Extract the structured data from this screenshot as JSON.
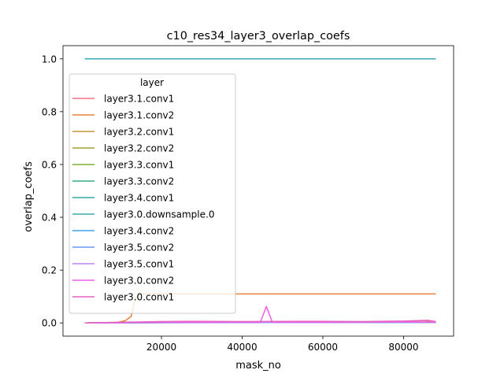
{
  "chart_data": {
    "type": "line",
    "title": "c10_res34_layer3_overlap_coefs",
    "xlabel": "mask_no",
    "ylabel": "overlap_coefs",
    "xlim": [
      -4400,
      92400
    ],
    "ylim": [
      -0.05,
      1.05
    ],
    "xticks": [
      20000,
      40000,
      60000,
      80000
    ],
    "xtick_labels": [
      "20000",
      "40000",
      "60000",
      "80000"
    ],
    "yticks": [
      0.0,
      0.2,
      0.4,
      0.6,
      0.8,
      1.0
    ],
    "ytick_labels": [
      "0.0",
      "0.2",
      "0.4",
      "0.6",
      "0.8",
      "1.0"
    ],
    "grid": false,
    "legend": {
      "title": "layer",
      "position": "upper-left"
    },
    "series": [
      {
        "name": "layer3.1.conv1",
        "color": "#f77189",
        "x": [
          1000,
          20000,
          40000,
          60000,
          80000,
          88000
        ],
        "y": [
          0.0,
          0.002,
          0.002,
          0.002,
          0.003,
          0.003
        ]
      },
      {
        "name": "layer3.1.conv2",
        "color": "#e9823a",
        "x": [
          1000,
          5000,
          9000,
          11000,
          12500,
          13500,
          14500,
          20000,
          40000,
          60000,
          80000,
          88000
        ],
        "y": [
          0.0,
          0.001,
          0.002,
          0.008,
          0.025,
          0.09,
          0.11,
          0.11,
          0.11,
          0.11,
          0.11,
          0.11
        ]
      },
      {
        "name": "layer3.2.conv1",
        "color": "#c39532",
        "x": [
          1000,
          20000,
          40000,
          60000,
          80000,
          85000,
          88000
        ],
        "y": [
          0.0,
          0.003,
          0.004,
          0.003,
          0.006,
          0.009,
          0.004
        ]
      },
      {
        "name": "layer3.2.conv2",
        "color": "#a39f31",
        "x": [
          1000,
          20000,
          40000,
          60000,
          80000,
          88000
        ],
        "y": [
          0.0,
          0.002,
          0.003,
          0.003,
          0.004,
          0.003
        ]
      },
      {
        "name": "layer3.3.conv1",
        "color": "#7daf30",
        "x": [
          1000,
          20000,
          40000,
          60000,
          80000,
          88000
        ],
        "y": [
          0.0,
          0.002,
          0.002,
          0.002,
          0.003,
          0.002
        ]
      },
      {
        "name": "layer3.3.conv2",
        "color": "#33b07a",
        "x": [
          1000,
          20000,
          40000,
          60000,
          80000,
          88000
        ],
        "y": [
          0.0,
          0.001,
          0.002,
          0.002,
          0.002,
          0.002
        ]
      },
      {
        "name": "layer3.4.conv1",
        "color": "#35ac9c",
        "x": [
          1000,
          20000,
          40000,
          60000,
          80000,
          88000
        ],
        "y": [
          0.0,
          0.002,
          0.002,
          0.002,
          0.002,
          0.002
        ]
      },
      {
        "name": "layer3.0.downsample.0",
        "color": "#37abb4",
        "x": [
          1000,
          20000,
          40000,
          60000,
          80000,
          88000
        ],
        "y": [
          1.0,
          1.0,
          1.0,
          1.0,
          1.0,
          1.0
        ]
      },
      {
        "name": "layer3.4.conv2",
        "color": "#3ba3ec",
        "x": [
          1000,
          20000,
          40000,
          60000,
          80000,
          88000
        ],
        "y": [
          0.0,
          0.001,
          0.002,
          0.002,
          0.002,
          0.002
        ]
      },
      {
        "name": "layer3.5.conv2",
        "color": "#6e9bf4",
        "x": [
          1000,
          20000,
          40000,
          60000,
          80000,
          88000
        ],
        "y": [
          0.0,
          0.001,
          0.001,
          0.002,
          0.002,
          0.002
        ]
      },
      {
        "name": "layer3.5.conv1",
        "color": "#bb83f4",
        "x": [
          1000,
          20000,
          40000,
          60000,
          80000,
          88000
        ],
        "y": [
          0.0,
          0.002,
          0.002,
          0.002,
          0.003,
          0.002
        ]
      },
      {
        "name": "layer3.0.conv2",
        "color": "#f45deb",
        "x": [
          1000,
          20000,
          44500,
          45200,
          46000,
          46800,
          47500,
          60000,
          80000,
          88000
        ],
        "y": [
          0.0,
          0.002,
          0.003,
          0.03,
          0.062,
          0.03,
          0.003,
          0.003,
          0.004,
          0.003
        ]
      },
      {
        "name": "layer3.0.conv1",
        "color": "#e662c4",
        "x": [
          1000,
          20000,
          26000,
          40000,
          60000,
          70000,
          80000,
          86000,
          88000
        ],
        "y": [
          0.0,
          0.005,
          0.006,
          0.005,
          0.006,
          0.005,
          0.007,
          0.01,
          0.005
        ]
      }
    ]
  }
}
